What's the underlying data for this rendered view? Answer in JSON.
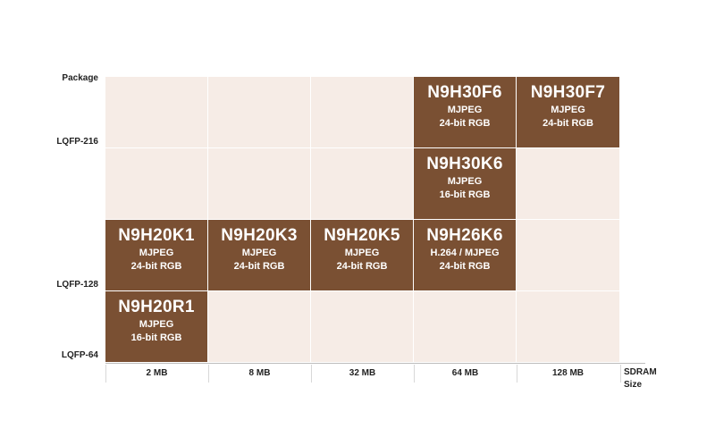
{
  "y_axis": {
    "title": "Package",
    "labels": [
      "LQFP-216",
      "LQFP-128",
      "LQFP-64"
    ]
  },
  "x_axis": {
    "labels": [
      "2 MB",
      "8 MB",
      "32 MB",
      "64 MB",
      "128 MB"
    ],
    "title_line1": "SDRAM",
    "title_line2": "Size"
  },
  "chips": [
    {
      "name": "N9H30F6",
      "codec": "MJPEG",
      "display": "24-bit RGB",
      "package": "LQFP-216",
      "sdram": "64 MB"
    },
    {
      "name": "N9H30F7",
      "codec": "MJPEG",
      "display": "24-bit RGB",
      "package": "LQFP-216",
      "sdram": "128 MB"
    },
    {
      "name": "N9H30K6",
      "codec": "MJPEG",
      "display": "16-bit RGB",
      "package": "LQFP-216",
      "sdram": "64 MB"
    },
    {
      "name": "N9H20K1",
      "codec": "MJPEG",
      "display": "24-bit RGB",
      "package": "LQFP-128",
      "sdram": "2 MB"
    },
    {
      "name": "N9H20K3",
      "codec": "MJPEG",
      "display": "24-bit RGB",
      "package": "LQFP-128",
      "sdram": "8 MB"
    },
    {
      "name": "N9H20K5",
      "codec": "MJPEG",
      "display": "24-bit RGB",
      "package": "LQFP-128",
      "sdram": "32 MB"
    },
    {
      "name": "N9H26K6",
      "codec": "H.264 / MJPEG",
      "display": "24-bit RGB",
      "package": "LQFP-128",
      "sdram": "64 MB"
    },
    {
      "name": "N9H20R1",
      "codec": "MJPEG",
      "display": "16-bit RGB",
      "package": "LQFP-64",
      "sdram": "2 MB"
    }
  ],
  "colors": {
    "chip_fill": "#7a5033",
    "cell_fill": "#f6ece6",
    "chip_text": "#ffffff"
  }
}
